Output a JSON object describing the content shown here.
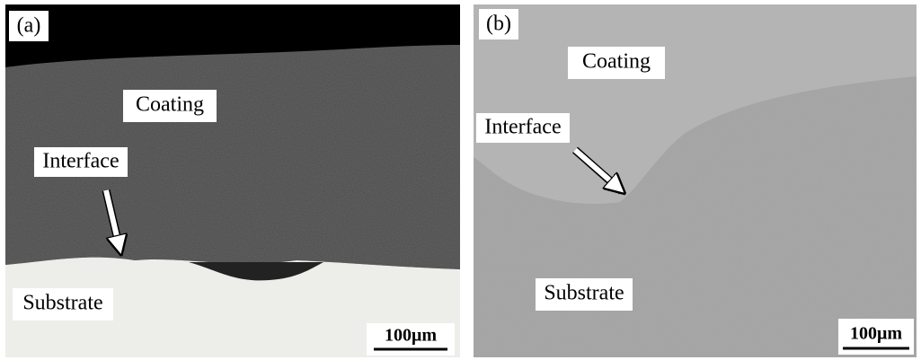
{
  "panels": [
    {
      "label": "(a)",
      "coating": "Coating",
      "interface": "Interface",
      "substrate": "Substrate",
      "scale_bar": "100μm"
    },
    {
      "label": "(b)",
      "coating": "Coating",
      "interface": "Interface",
      "substrate": "Substrate",
      "scale_bar": "100μm"
    }
  ]
}
